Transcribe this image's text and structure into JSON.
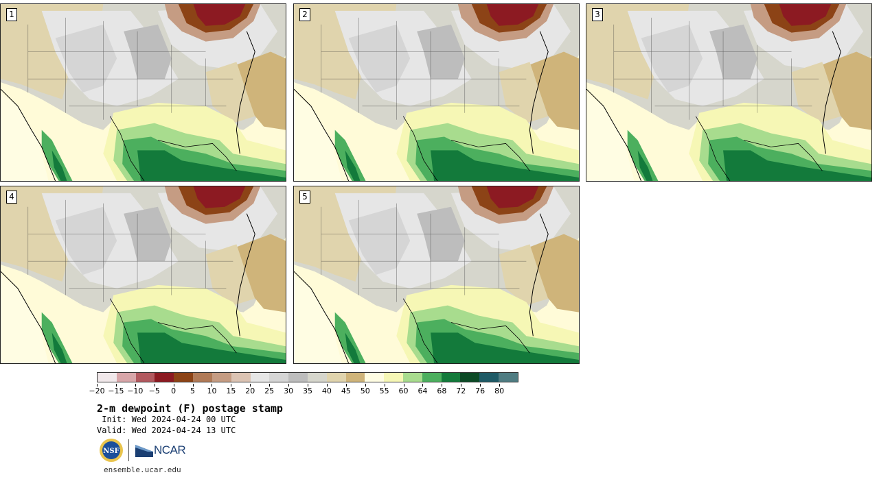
{
  "panels": [
    {
      "label": "1"
    },
    {
      "label": "2"
    },
    {
      "label": "3"
    },
    {
      "label": "4"
    },
    {
      "label": "5"
    }
  ],
  "colorbar": {
    "colors": [
      "#f1e8ea",
      "#d8a6a9",
      "#b2595f",
      "#8c1a22",
      "#8c4316",
      "#b07a57",
      "#c59c83",
      "#dbc3b3",
      "#e6e6e6",
      "#d5d5d5",
      "#bdbdbd",
      "#d6d6cc",
      "#e0d4ad",
      "#cfb47a",
      "#fffde3",
      "#f6f7b5",
      "#a8dc8e",
      "#4caf5e",
      "#137a3b",
      "#0c4a26",
      "#1e5a66",
      "#4f7c82"
    ],
    "ticks": [
      "−20",
      "−15",
      "−10",
      "−5",
      "0",
      "5",
      "10",
      "15",
      "20",
      "25",
      "30",
      "35",
      "40",
      "45",
      "50",
      "55",
      "60",
      "64",
      "68",
      "72",
      "76",
      "80"
    ]
  },
  "title": "2-m dewpoint (F) postage stamp",
  "init": " Init: Wed 2024-04-24 00 UTC",
  "valid": "Valid: Wed 2024-04-24 13 UTC",
  "logos": {
    "nsf": "NSF",
    "ncar": "NCAR"
  },
  "url": "ensemble.ucar.edu"
}
